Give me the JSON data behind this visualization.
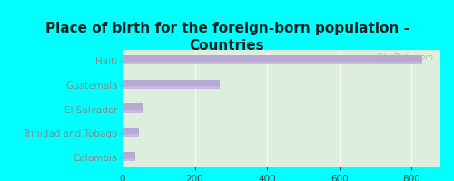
{
  "title": "Place of birth for the foreign-born population -\nCountries",
  "categories": [
    "Haiti",
    "Guatemala",
    "El Salvador",
    "Trinidad and Tobago",
    "Colombia"
  ],
  "values": [
    830,
    270,
    55,
    45,
    35
  ],
  "bar_color": "#b8a8d4",
  "bar_color2": "#c8b8e0",
  "background_outer": "#00ffff",
  "background_inner_top": "#e8f0e0",
  "background_inner": "#ddeedd",
  "xlim": [
    0,
    880
  ],
  "xticks": [
    0,
    200,
    400,
    600,
    800
  ],
  "title_fontsize": 11,
  "label_fontsize": 7.5,
  "tick_fontsize": 7.5,
  "title_color": "#222222",
  "label_color": "#444444",
  "watermark": "City-Data.com"
}
